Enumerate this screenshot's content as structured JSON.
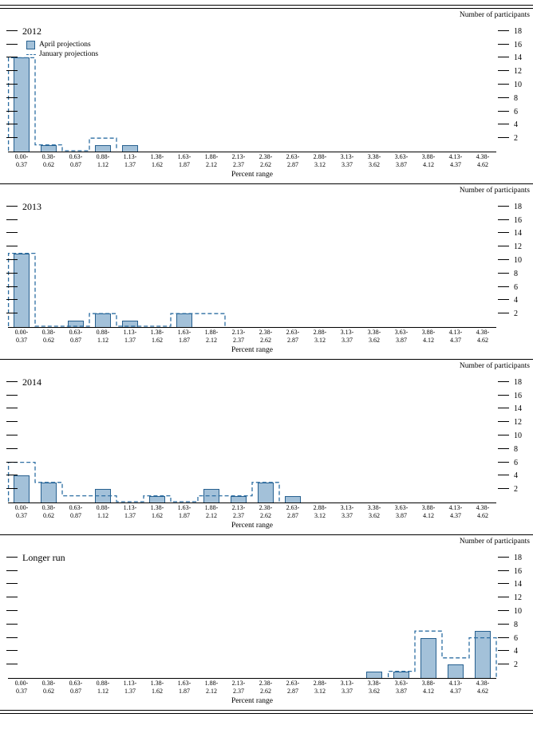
{
  "figure": {
    "ylabel_right": "Number of participants",
    "xlabel": "Percent range",
    "legend": {
      "april": "April projections",
      "january": "January projections"
    },
    "colors": {
      "bar_fill": "#a3c1d9",
      "bar_edge": "#27608f",
      "dashed": "#2e6fa3",
      "axis": "#000000"
    }
  },
  "chart_data": {
    "type": "bar",
    "ylim": [
      0,
      19
    ],
    "yticks": [
      2,
      4,
      6,
      8,
      10,
      12,
      14,
      16,
      18
    ],
    "grid": "off",
    "legend_position": "top-left-first-panel",
    "categories": [
      [
        "0.00-",
        "0.37"
      ],
      [
        "0.38-",
        "0.62"
      ],
      [
        "0.63-",
        "0.87"
      ],
      [
        "0.88-",
        "1.12"
      ],
      [
        "1.13-",
        "1.37"
      ],
      [
        "1.38-",
        "1.62"
      ],
      [
        "1.63-",
        "1.87"
      ],
      [
        "1.88-",
        "2.12"
      ],
      [
        "2.13-",
        "2.37"
      ],
      [
        "2.38-",
        "2.62"
      ],
      [
        "2.63-",
        "2.87"
      ],
      [
        "2.88-",
        "3.12"
      ],
      [
        "3.13-",
        "3.37"
      ],
      [
        "3.38-",
        "3.62"
      ],
      [
        "3.63-",
        "3.87"
      ],
      [
        "3.88-",
        "4.12"
      ],
      [
        "4.13-",
        "4.37"
      ],
      [
        "4.38-",
        "4.62"
      ]
    ],
    "panels": [
      {
        "title": "2012",
        "series": [
          {
            "name": "April projections",
            "style": "bar",
            "values": [
              14,
              1,
              0,
              1,
              1,
              0,
              0,
              0,
              0,
              0,
              0,
              0,
              0,
              0,
              0,
              0,
              0,
              0
            ]
          },
          {
            "name": "January projections",
            "style": "dashed-outline",
            "values": [
              14,
              1,
              0,
              2,
              0,
              0,
              0,
              0,
              0,
              0,
              0,
              0,
              0,
              0,
              0,
              0,
              0,
              0
            ]
          }
        ]
      },
      {
        "title": "2013",
        "series": [
          {
            "name": "April projections",
            "style": "bar",
            "values": [
              11,
              0,
              1,
              2,
              1,
              0,
              2,
              0,
              0,
              0,
              0,
              0,
              0,
              0,
              0,
              0,
              0,
              0
            ]
          },
          {
            "name": "January projections",
            "style": "dashed-outline",
            "values": [
              11,
              0,
              0,
              2,
              0,
              0,
              2,
              2,
              0,
              0,
              0,
              0,
              0,
              0,
              0,
              0,
              0,
              0
            ]
          }
        ]
      },
      {
        "title": "2014",
        "series": [
          {
            "name": "April projections",
            "style": "bar",
            "values": [
              4,
              3,
              0,
              2,
              0,
              1,
              0,
              2,
              1,
              3,
              1,
              0,
              0,
              0,
              0,
              0,
              0,
              0
            ]
          },
          {
            "name": "January projections",
            "style": "dashed-outline",
            "values": [
              6,
              3,
              1,
              1,
              0,
              1,
              0,
              1,
              1,
              3,
              0,
              0,
              0,
              0,
              0,
              0,
              0,
              0
            ]
          }
        ]
      },
      {
        "title": "Longer run",
        "series": [
          {
            "name": "April projections",
            "style": "bar",
            "values": [
              0,
              0,
              0,
              0,
              0,
              0,
              0,
              0,
              0,
              0,
              0,
              0,
              0,
              1,
              1,
              6,
              2,
              7
            ]
          },
          {
            "name": "January projections",
            "style": "dashed-outline",
            "values": [
              0,
              0,
              0,
              0,
              0,
              0,
              0,
              0,
              0,
              0,
              0,
              0,
              0,
              0,
              1,
              7,
              3,
              6
            ]
          }
        ]
      }
    ]
  }
}
